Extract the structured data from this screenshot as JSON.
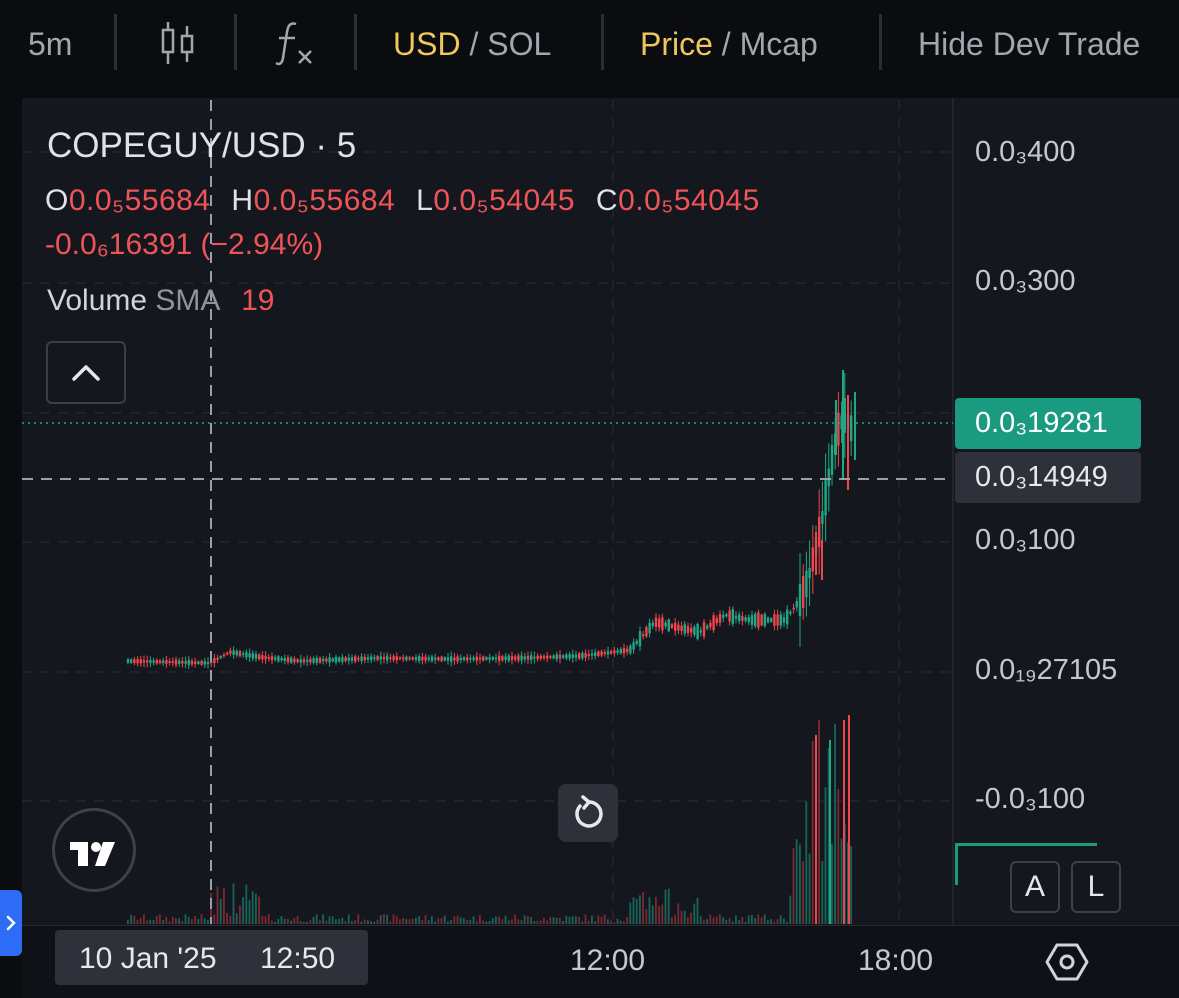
{
  "toolbar": {
    "interval": "5m",
    "currency_active": "USD",
    "currency_sep": "/",
    "currency_inactive": "SOL",
    "mode_active": "Price",
    "mode_sep": "/",
    "mode_inactive": "Mcap",
    "hide_dev": "Hide Dev Trade"
  },
  "legend": {
    "title": "COPEGUY/USD · 5",
    "o_key": "O",
    "o_val": "0.0₅55684",
    "h_key": "H",
    "h_val": "0.0₅55684",
    "l_key": "L",
    "l_val": "0.0₅54045",
    "c_key": "C",
    "c_val": "0.0₅54045",
    "change": "-0.0₆16391 (−2.94%)",
    "volume_label": "Volume",
    "volume_sma": "SMA",
    "volume_len": "19"
  },
  "price_axis": {
    "labels": [
      "0.0₃400",
      "0.0₃300",
      "0.0₃100",
      "0.0₁₉27105",
      "-0.0₃100"
    ],
    "last_price_tag": "0.0₃19281",
    "crosshair_price_tag": "0.0₃14949"
  },
  "time_axis": {
    "crosshair_date": "10 Jan '25",
    "crosshair_time": "12:50",
    "labels": [
      "12:00",
      "18:00"
    ]
  },
  "buttons": {
    "auto": "A",
    "log": "L"
  },
  "colors": {
    "up": "#1fa886",
    "down": "#f0454b",
    "accent": "#f0c75e",
    "last_price": "#1a9a7e"
  }
}
